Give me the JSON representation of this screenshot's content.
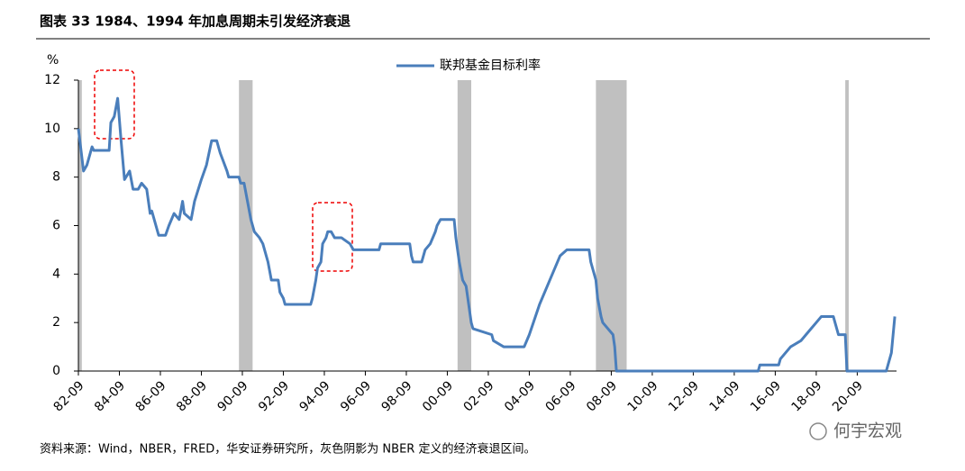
{
  "chart_data": {
    "type": "line",
    "title": "图表 33 1984、1994 年加息周期未引发经济衰退",
    "y_label": "%",
    "source": "资料来源：Wind，NBER，FRED，华安证券研究所，灰色阴影为 NBER 定义的经济衰退区间。",
    "watermark": "何宇宏观",
    "legend": "top",
    "xlim": [
      "82-09",
      "22-08"
    ],
    "xticks": [
      "82-09",
      "84-09",
      "86-09",
      "88-09",
      "90-09",
      "92-09",
      "94-09",
      "96-09",
      "98-09",
      "00-09",
      "02-09",
      "04-09",
      "06-09",
      "08-09",
      "10-09",
      "12-09",
      "14-09",
      "16-09",
      "18-09",
      "20-09"
    ],
    "ylim": [
      0,
      12
    ],
    "yticks": [
      0,
      2,
      4,
      6,
      8,
      10,
      12
    ],
    "recessions": [
      [
        "82-09",
        "82-11"
      ],
      [
        "90-07",
        "91-03"
      ],
      [
        "01-03",
        "01-11"
      ],
      [
        "07-12",
        "09-06"
      ],
      [
        "20-02",
        "20-04"
      ]
    ],
    "recession_color": "#c0c0c0",
    "series": [
      {
        "name": "联邦基金目标利率",
        "color": "#4a7ebb",
        "x": [
          "82-09",
          "82-12",
          "83-02",
          "83-05",
          "83-06",
          "84-03",
          "84-04",
          "84-06",
          "84-08",
          "84-10",
          "84-12",
          "85-03",
          "85-05",
          "85-08",
          "85-10",
          "86-01",
          "86-03",
          "86-04",
          "86-08",
          "86-12",
          "87-02",
          "87-05",
          "87-08",
          "87-10",
          "87-11",
          "88-03",
          "88-05",
          "88-09",
          "88-12",
          "89-03",
          "89-06",
          "89-08",
          "89-12",
          "90-01",
          "90-07",
          "90-08",
          "90-10",
          "90-12",
          "91-02",
          "91-04",
          "91-07",
          "91-09",
          "91-12",
          "92-02",
          "92-06",
          "92-07",
          "92-09",
          "92-10",
          "94-01",
          "94-02",
          "94-04",
          "94-05",
          "94-07",
          "94-08",
          "94-10",
          "94-11",
          "95-01",
          "95-03",
          "95-07",
          "95-12",
          "96-02",
          "97-05",
          "97-06",
          "98-11",
          "98-12",
          "99-01",
          "99-06",
          "99-08",
          "99-11",
          "00-02",
          "00-03",
          "00-05",
          "01-01",
          "01-02",
          "01-03",
          "01-04",
          "01-06",
          "01-08",
          "01-10",
          "01-11",
          "01-12",
          "02-11",
          "02-12",
          "03-06",
          "04-06",
          "04-09",
          "05-03",
          "05-09",
          "06-03",
          "06-07",
          "07-08",
          "07-09",
          "07-10",
          "07-12",
          "08-01",
          "08-03",
          "08-04",
          "08-10",
          "08-11",
          "08-12",
          "15-11",
          "15-12",
          "16-11",
          "16-12",
          "17-03",
          "17-06",
          "17-12",
          "18-03",
          "18-06",
          "18-09",
          "18-12",
          "19-07",
          "19-08",
          "19-09",
          "19-10",
          "20-02",
          "20-03",
          "22-02",
          "22-03",
          "22-05",
          "22-06",
          "22-07"
        ],
        "values": [
          10,
          8.25,
          8.5,
          9.25,
          9.1,
          9.1,
          10.25,
          10.5,
          11.25,
          9.5,
          7.9,
          8.25,
          7.5,
          7.5,
          7.75,
          7.5,
          6.5,
          6.6,
          5.6,
          5.6,
          6.0,
          6.5,
          6.25,
          7.0,
          6.5,
          6.25,
          7.0,
          7.9,
          8.5,
          9.5,
          9.5,
          9.0,
          8.25,
          8.0,
          8.0,
          7.75,
          7.75,
          7.0,
          6.25,
          5.75,
          5.5,
          5.25,
          4.5,
          3.75,
          3.75,
          3.25,
          3.0,
          2.75,
          2.75,
          3.0,
          3.75,
          4.25,
          4.5,
          5.25,
          5.5,
          5.75,
          5.75,
          5.5,
          5.5,
          5.25,
          5.0,
          5.0,
          5.25,
          5.25,
          4.75,
          4.5,
          4.5,
          5.0,
          5.25,
          5.75,
          6.0,
          6.25,
          6.25,
          5.5,
          5.0,
          4.5,
          3.75,
          3.5,
          2.5,
          2.0,
          1.75,
          1.5,
          1.25,
          1.0,
          1.0,
          1.5,
          2.75,
          3.75,
          4.75,
          5.0,
          5.0,
          4.5,
          4.25,
          3.75,
          3.0,
          2.25,
          2.0,
          1.5,
          1.0,
          0,
          0,
          0.25,
          0.25,
          0.5,
          0.75,
          1.0,
          1.25,
          1.5,
          1.75,
          2.0,
          2.25,
          2.25,
          2.0,
          1.75,
          1.5,
          1.5,
          0,
          0,
          0.25,
          0.75,
          1.5,
          2.25
        ]
      }
    ]
  }
}
